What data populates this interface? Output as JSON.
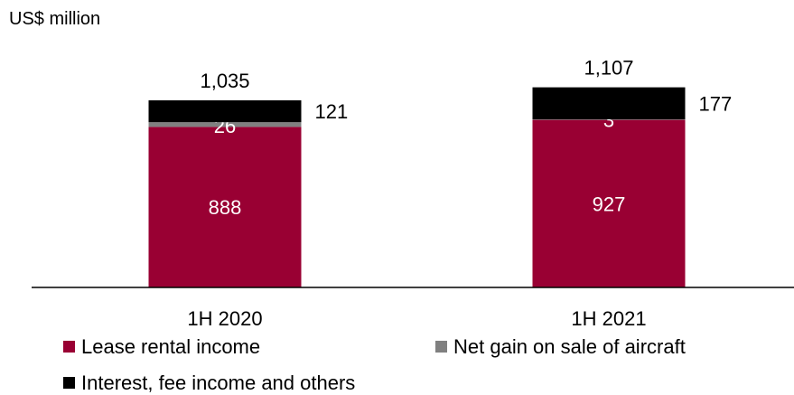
{
  "chart_data": {
    "type": "bar",
    "stacked": true,
    "unit_label": "US$ million",
    "categories": [
      "1H 2020",
      "1H 2021"
    ],
    "totals": [
      "1,035",
      "1,107"
    ],
    "series": [
      {
        "name": "Lease rental income",
        "values": [
          888,
          927
        ],
        "color": "#990033",
        "label_color": "#ffffff"
      },
      {
        "name": "Net gain on sale of aircraft",
        "values": [
          26,
          3
        ],
        "color": "#808080",
        "label_color": "#ffffff"
      },
      {
        "name": "Interest, fee income and others",
        "values": [
          121,
          177
        ],
        "color": "#000000",
        "label_color": "#000000"
      }
    ],
    "legend_position": "bottom",
    "grid": false
  }
}
